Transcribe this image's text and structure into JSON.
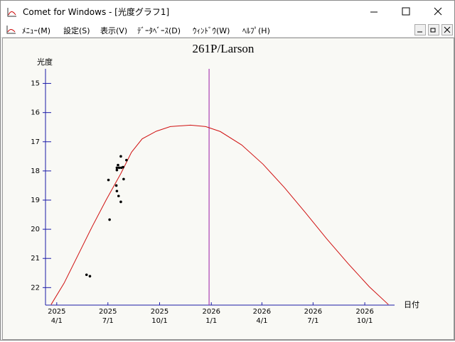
{
  "window": {
    "title": "Comet for Windows - [光度グラフ1]",
    "menu": [
      "ﾒﾆｭｰ(M)",
      "設定(S)",
      "表示(V)",
      "ﾃﾞｰﾀﾍﾞｰｽ(D)",
      "ｳｨﾝﾄﾞｳ(W)",
      "ﾍﾙﾌﾟ(H)"
    ]
  },
  "chart_data": {
    "type": "scatter",
    "title": "261P/Larson",
    "y_label": "光度",
    "x_label": "日付",
    "xlim": [
      "2025-03-12",
      "2026-11-23"
    ],
    "xticks": [
      {
        "value": "2025-04-01",
        "label": [
          "2025",
          "4/1"
        ]
      },
      {
        "value": "2025-07-01",
        "label": [
          "2025",
          "7/1"
        ]
      },
      {
        "value": "2025-10-01",
        "label": [
          "2025",
          "10/1"
        ]
      },
      {
        "value": "2026-01-01",
        "label": [
          "2026",
          "1/1"
        ]
      },
      {
        "value": "2026-04-01",
        "label": [
          "2026",
          "4/1"
        ]
      },
      {
        "value": "2026-07-01",
        "label": [
          "2026",
          "7/1"
        ]
      },
      {
        "value": "2026-10-01",
        "label": [
          "2026",
          "10/1"
        ]
      }
    ],
    "ylim": [
      14.5,
      22.6
    ],
    "y_inverted": true,
    "yticks": [
      15,
      16,
      17,
      18,
      19,
      20,
      21,
      22
    ],
    "axis_color": "#1c1ca8",
    "vline": {
      "x": "2025-12-28",
      "color": "#9a1aa6"
    },
    "series": [
      {
        "type": "line",
        "color": "#d01010",
        "x": [
          "2025-03-22",
          "2025-04-14",
          "2025-05-09",
          "2025-06-03",
          "2025-06-28",
          "2025-07-24",
          "2025-08-12",
          "2025-08-31",
          "2025-09-25",
          "2025-10-20",
          "2025-11-25",
          "2025-12-22",
          "2026-01-17",
          "2026-02-24",
          "2026-04-03",
          "2026-05-11",
          "2026-06-17",
          "2026-07-25",
          "2026-09-01",
          "2026-10-09",
          "2026-11-12"
        ],
        "values": [
          22.58,
          21.85,
          20.88,
          19.91,
          18.99,
          18.09,
          17.36,
          16.9,
          16.64,
          16.48,
          16.43,
          16.48,
          16.65,
          17.11,
          17.77,
          18.57,
          19.42,
          20.32,
          21.17,
          21.97,
          22.58
        ]
      },
      {
        "type": "scatter",
        "color": "#000000",
        "x": [
          "2025-05-24",
          "2025-05-30",
          "2025-07-02",
          "2025-07-04",
          "2025-07-16",
          "2025-07-17",
          "2025-07-19",
          "2025-07-17",
          "2025-07-21",
          "2025-07-24",
          "2025-07-25",
          "2025-07-28",
          "2025-07-29",
          "2025-08-03",
          "2025-07-17",
          "2025-07-20",
          "2025-07-24"
        ],
        "values": [
          21.56,
          21.61,
          18.31,
          19.67,
          18.5,
          17.89,
          17.8,
          17.97,
          17.89,
          17.5,
          17.89,
          17.87,
          18.28,
          17.63,
          18.69,
          18.86,
          19.06
        ]
      }
    ]
  }
}
